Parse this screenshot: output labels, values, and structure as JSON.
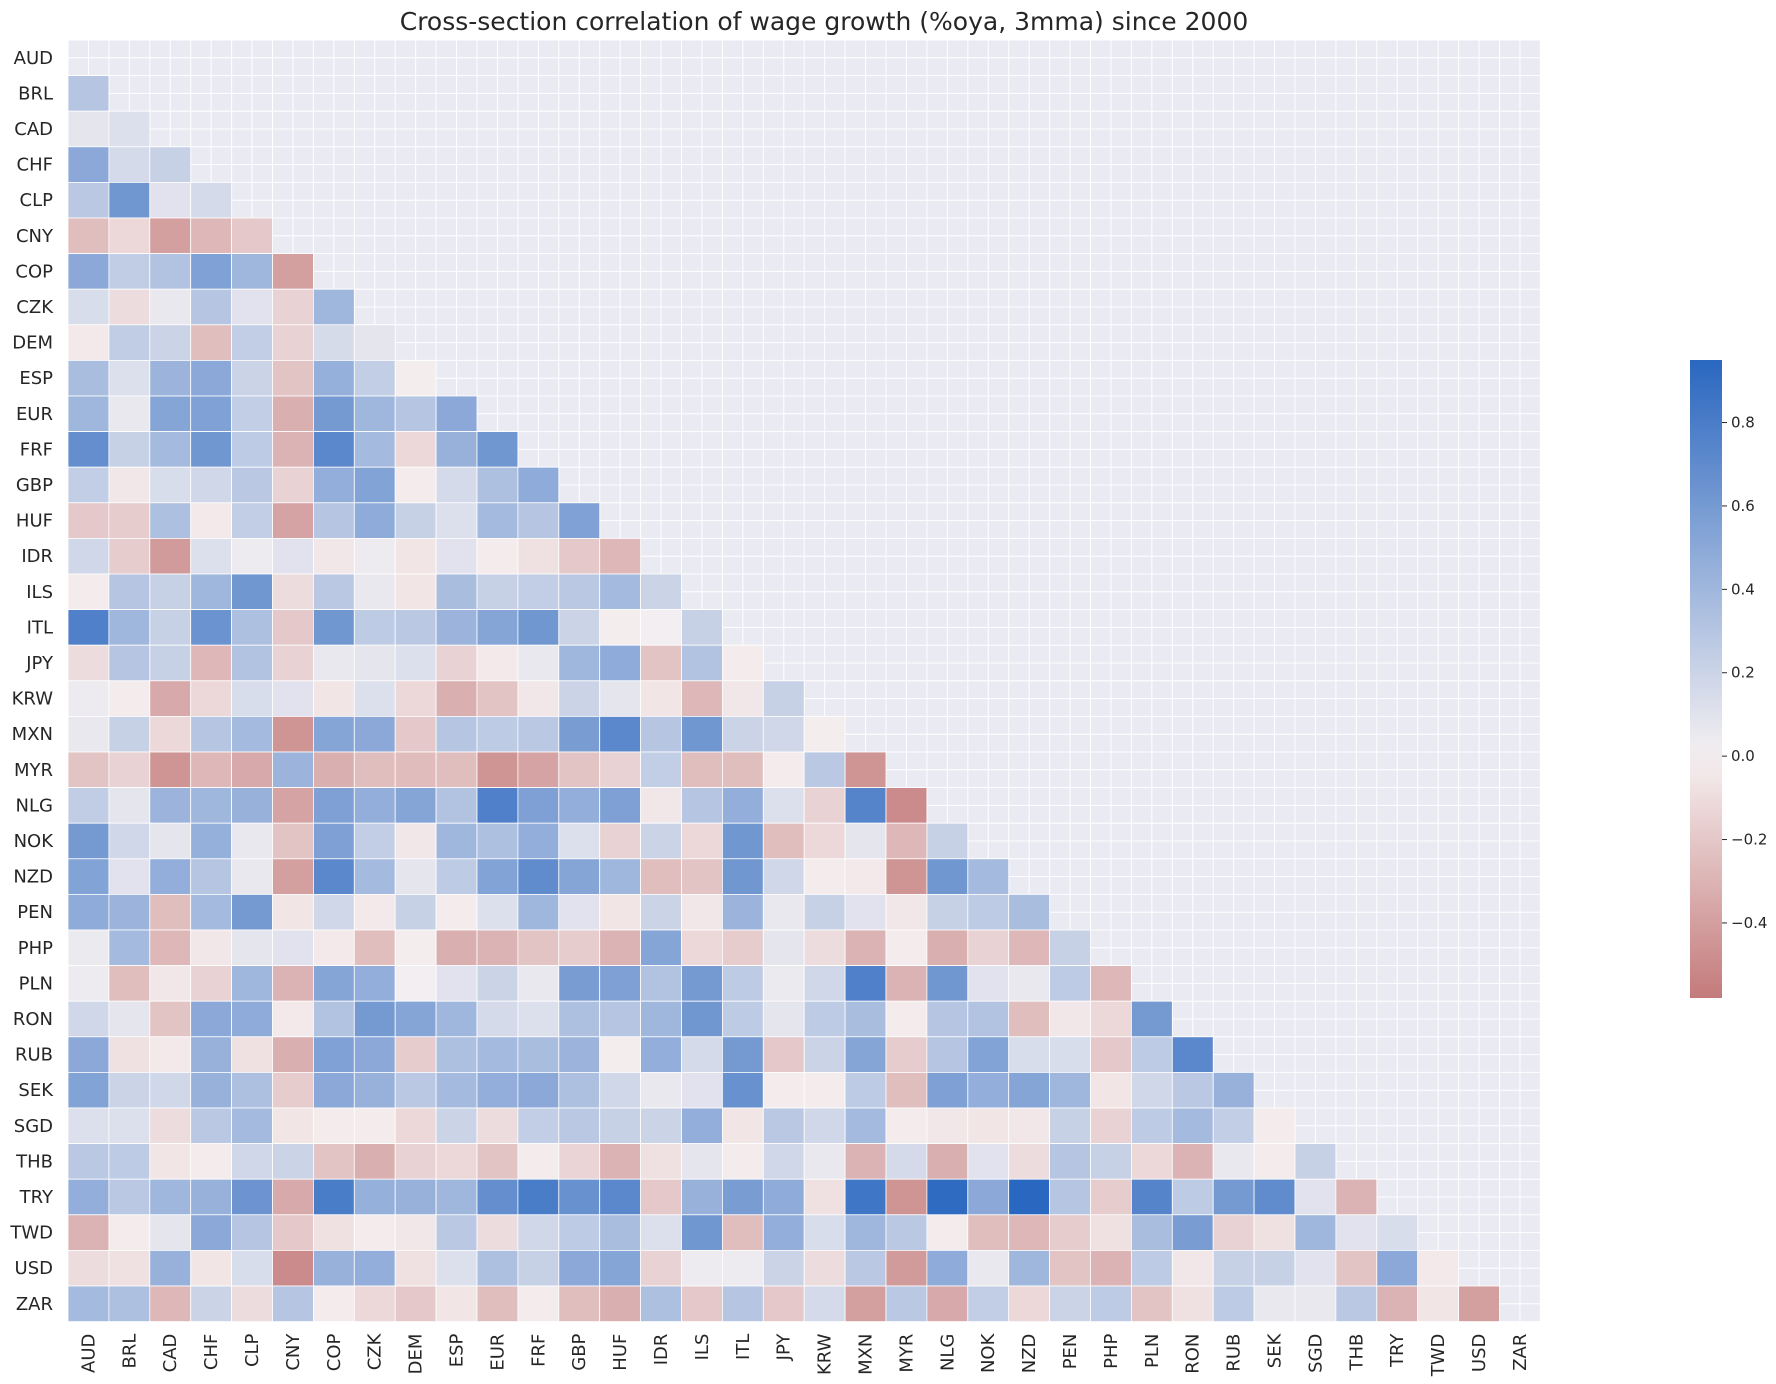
{
  "chart_data": {
    "type": "heatmap",
    "title": "Cross-section correlation of wage growth (%oya, 3mma) since 2000",
    "xlabel": "",
    "ylabel": "",
    "categories": [
      "AUD",
      "BRL",
      "CAD",
      "CHF",
      "CLP",
      "CNY",
      "COP",
      "CZK",
      "DEM",
      "ESP",
      "EUR",
      "FRF",
      "GBP",
      "HUF",
      "IDR",
      "ILS",
      "ITL",
      "JPY",
      "KRW",
      "MXN",
      "MYR",
      "NLG",
      "NOK",
      "NZD",
      "PEN",
      "PHP",
      "PLN",
      "RON",
      "RUB",
      "SEK",
      "SGD",
      "THB",
      "TRY",
      "TWD",
      "USD",
      "ZAR"
    ],
    "mask": "upper triangle including diagonal",
    "values": [
      [],
      [
        0.3
      ],
      [
        0.08,
        0.12
      ],
      [
        0.5,
        0.16,
        0.22
      ],
      [
        0.28,
        0.62,
        0.1,
        0.16
      ],
      [
        -0.25,
        -0.12,
        -0.4,
        -0.28,
        -0.2
      ],
      [
        0.5,
        0.25,
        0.32,
        0.55,
        0.4,
        -0.4
      ],
      [
        0.14,
        -0.1,
        0.06,
        0.3,
        0.1,
        -0.15,
        0.4
      ],
      [
        -0.04,
        0.25,
        0.2,
        -0.25,
        0.24,
        -0.15,
        0.15,
        0.08
      ],
      [
        0.36,
        0.12,
        0.42,
        0.5,
        0.2,
        -0.22,
        0.45,
        0.24,
        -0.02
      ],
      [
        0.4,
        0.06,
        0.52,
        0.55,
        0.24,
        -0.32,
        0.6,
        0.4,
        0.3,
        0.5
      ],
      [
        0.68,
        0.22,
        0.38,
        0.62,
        0.26,
        -0.3,
        0.72,
        0.38,
        -0.12,
        0.44,
        0.62
      ],
      [
        0.24,
        -0.05,
        0.14,
        0.18,
        0.28,
        -0.15,
        0.46,
        0.54,
        -0.03,
        0.16,
        0.34,
        0.48
      ],
      [
        -0.2,
        -0.18,
        0.34,
        -0.04,
        0.24,
        -0.38,
        0.3,
        0.48,
        0.22,
        0.12,
        0.38,
        0.3,
        0.55
      ],
      [
        0.18,
        -0.18,
        -0.42,
        0.12,
        0.04,
        0.1,
        -0.05,
        0.04,
        -0.06,
        0.1,
        -0.03,
        -0.08,
        -0.2,
        -0.28
      ],
      [
        -0.03,
        0.3,
        0.22,
        0.4,
        0.62,
        -0.1,
        0.28,
        0.06,
        -0.06,
        0.36,
        0.22,
        0.24,
        0.28,
        0.38,
        0.2
      ],
      [
        0.78,
        0.4,
        0.22,
        0.65,
        0.34,
        -0.2,
        0.62,
        0.26,
        0.28,
        0.42,
        0.52,
        0.62,
        0.2,
        -0.02,
        0.02,
        0.22
      ],
      [
        -0.1,
        0.3,
        0.22,
        -0.28,
        0.32,
        -0.15,
        0.06,
        0.08,
        0.12,
        -0.15,
        -0.04,
        0.06,
        0.4,
        0.48,
        -0.22,
        0.32,
        -0.03
      ],
      [
        0.04,
        -0.03,
        -0.35,
        -0.12,
        0.14,
        0.1,
        -0.06,
        0.12,
        -0.12,
        -0.32,
        -0.22,
        -0.05,
        0.2,
        0.08,
        -0.06,
        -0.28,
        -0.05,
        0.22
      ],
      [
        0.06,
        0.22,
        -0.12,
        0.3,
        0.38,
        -0.45,
        0.52,
        0.5,
        -0.2,
        0.3,
        0.26,
        0.28,
        0.58,
        0.72,
        0.3,
        0.62,
        0.2,
        0.18,
        -0.02
      ],
      [
        -0.22,
        -0.15,
        -0.45,
        -0.28,
        -0.35,
        0.42,
        -0.32,
        -0.25,
        -0.26,
        -0.25,
        -0.45,
        -0.38,
        -0.22,
        -0.15,
        0.24,
        -0.25,
        -0.25,
        -0.03,
        0.28,
        -0.45
      ],
      [
        0.25,
        0.08,
        0.42,
        0.4,
        0.44,
        -0.38,
        0.56,
        0.46,
        0.52,
        0.32,
        0.78,
        0.56,
        0.46,
        0.56,
        -0.05,
        0.3,
        0.46,
        0.12,
        -0.15,
        0.75,
        -0.5
      ],
      [
        0.6,
        0.18,
        0.08,
        0.45,
        0.06,
        -0.22,
        0.56,
        0.24,
        -0.05,
        0.4,
        0.34,
        0.46,
        0.12,
        -0.15,
        0.2,
        -0.12,
        0.62,
        -0.25,
        -0.12,
        0.08,
        -0.28,
        0.22
      ],
      [
        0.54,
        0.1,
        0.46,
        0.3,
        0.06,
        -0.4,
        0.72,
        0.38,
        0.08,
        0.26,
        0.54,
        0.7,
        0.52,
        0.4,
        -0.25,
        -0.22,
        0.62,
        0.18,
        -0.03,
        -0.04,
        -0.45,
        0.62,
        0.38
      ],
      [
        0.48,
        0.42,
        -0.25,
        0.38,
        0.6,
        -0.06,
        0.18,
        -0.04,
        0.22,
        -0.03,
        0.12,
        0.4,
        0.1,
        -0.06,
        0.2,
        -0.05,
        0.42,
        0.06,
        0.22,
        0.1,
        -0.05,
        0.22,
        0.26,
        0.36
      ],
      [
        0.05,
        0.38,
        -0.28,
        -0.05,
        0.08,
        0.1,
        -0.04,
        -0.25,
        -0.02,
        -0.32,
        -0.3,
        -0.22,
        -0.18,
        -0.3,
        0.52,
        -0.12,
        -0.18,
        0.08,
        -0.1,
        -0.3,
        -0.03,
        -0.32,
        -0.15,
        -0.28,
        0.22
      ],
      [
        0.04,
        -0.25,
        -0.05,
        -0.15,
        0.4,
        -0.3,
        0.52,
        0.46,
        0.02,
        0.1,
        0.2,
        0.06,
        0.58,
        0.56,
        0.32,
        0.6,
        0.26,
        0.05,
        0.18,
        0.78,
        -0.3,
        0.62,
        0.1,
        0.06,
        0.26,
        -0.28
      ],
      [
        0.18,
        0.08,
        -0.22,
        0.5,
        0.48,
        -0.04,
        0.32,
        0.6,
        0.52,
        0.4,
        0.16,
        0.12,
        0.34,
        0.3,
        0.4,
        0.62,
        0.26,
        0.08,
        0.26,
        0.36,
        -0.03,
        0.3,
        0.32,
        -0.25,
        -0.05,
        -0.12,
        0.6
      ],
      [
        0.5,
        -0.08,
        -0.04,
        0.44,
        -0.08,
        -0.32,
        0.55,
        0.5,
        -0.18,
        0.34,
        0.38,
        0.36,
        0.42,
        -0.02,
        0.46,
        0.16,
        0.6,
        -0.2,
        0.2,
        0.52,
        -0.18,
        0.3,
        0.54,
        0.14,
        0.14,
        -0.2,
        0.26,
        0.72
      ],
      [
        0.54,
        0.2,
        0.18,
        0.44,
        0.34,
        -0.18,
        0.5,
        0.44,
        0.28,
        0.38,
        0.46,
        0.5,
        0.34,
        0.18,
        0.06,
        0.1,
        0.66,
        -0.03,
        -0.03,
        0.26,
        -0.25,
        0.56,
        0.46,
        0.52,
        0.4,
        -0.06,
        0.18,
        0.28,
        0.44
      ],
      [
        0.12,
        0.12,
        -0.1,
        0.28,
        0.38,
        -0.06,
        -0.03,
        -0.03,
        -0.12,
        0.2,
        -0.1,
        0.24,
        0.28,
        0.22,
        0.2,
        0.46,
        -0.06,
        0.28,
        0.18,
        0.38,
        -0.03,
        -0.05,
        -0.06,
        -0.05,
        0.22,
        -0.15,
        0.26,
        0.38,
        0.24,
        -0.03
      ],
      [
        0.28,
        0.26,
        -0.06,
        -0.03,
        0.18,
        0.2,
        -0.22,
        -0.32,
        -0.15,
        -0.12,
        -0.22,
        -0.03,
        -0.14,
        -0.3,
        -0.08,
        0.08,
        -0.03,
        0.18,
        0.06,
        -0.3,
        0.16,
        -0.32,
        0.1,
        -0.1,
        0.3,
        0.22,
        -0.12,
        -0.3,
        0.06,
        -0.03,
        0.22
      ],
      [
        0.46,
        0.28,
        0.4,
        0.44,
        0.64,
        -0.35,
        0.8,
        0.45,
        0.44,
        0.4,
        0.68,
        0.8,
        0.66,
        0.72,
        -0.2,
        0.44,
        0.58,
        0.48,
        -0.08,
        0.85,
        -0.45,
        0.92,
        0.5,
        0.95,
        0.3,
        -0.18,
        0.75,
        0.26,
        0.6,
        0.7,
        0.1,
        -0.3
      ],
      [
        -0.3,
        -0.03,
        0.08,
        0.5,
        0.3,
        -0.2,
        -0.08,
        -0.03,
        -0.05,
        0.28,
        -0.1,
        0.18,
        0.26,
        0.36,
        0.12,
        0.62,
        -0.25,
        0.46,
        0.14,
        0.4,
        0.28,
        -0.03,
        -0.25,
        -0.28,
        -0.18,
        -0.08,
        0.36,
        0.58,
        -0.15,
        -0.08,
        0.4,
        0.1,
        0.14
      ],
      [
        -0.1,
        -0.08,
        0.44,
        -0.06,
        0.14,
        -0.5,
        0.44,
        0.46,
        -0.08,
        0.12,
        0.34,
        0.22,
        0.5,
        0.52,
        -0.15,
        0.04,
        0.04,
        0.2,
        -0.1,
        0.28,
        -0.42,
        0.48,
        0.06,
        0.4,
        -0.22,
        -0.3,
        0.26,
        -0.05,
        0.22,
        0.22,
        0.1,
        -0.22,
        0.5,
        -0.04
      ],
      [
        0.38,
        0.34,
        -0.28,
        0.2,
        -0.1,
        0.3,
        -0.03,
        -0.12,
        -0.2,
        -0.06,
        -0.25,
        -0.03,
        -0.25,
        -0.32,
        0.34,
        -0.2,
        0.3,
        -0.2,
        0.16,
        -0.4,
        0.28,
        -0.35,
        0.24,
        -0.12,
        0.2,
        0.26,
        -0.22,
        -0.08,
        0.26,
        0.06,
        0.06,
        0.28,
        -0.3,
        -0.06,
        -0.4
      ]
    ],
    "colorbar": {
      "vmin": -0.58,
      "vmax": 0.95,
      "ticks": [
        -0.4,
        -0.2,
        0.0,
        0.2,
        0.4,
        0.6,
        0.8
      ],
      "tick_labels": [
        "−0.4",
        "−0.2",
        "0.0",
        "0.2",
        "0.4",
        "0.6",
        "0.8"
      ]
    },
    "colors": {
      "negative": "#c47a7a",
      "zero": "#f6f1f2",
      "positive": "#2a67c0",
      "background": "#eaeaf2",
      "grid": "#ffffff",
      "text": "#262626"
    }
  }
}
